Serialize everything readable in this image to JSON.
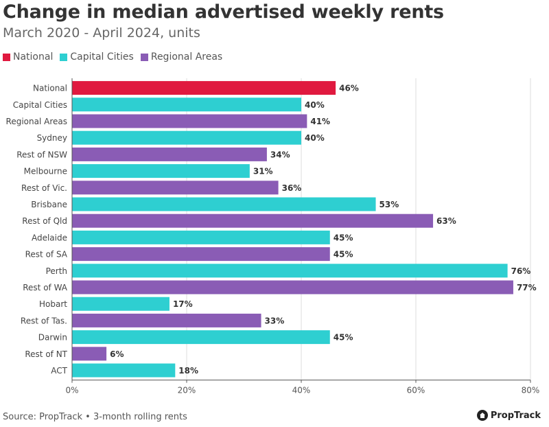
{
  "chart_data": {
    "type": "bar",
    "orientation": "horizontal",
    "title": "Change in median advertised weekly rents",
    "subtitle": "March 2020 - April 2024, units",
    "legend": [
      {
        "name": "National",
        "color": "#e0193f"
      },
      {
        "name": "Capital Cities",
        "color": "#2ecfd1"
      },
      {
        "name": "Regional Areas",
        "color": "#8a5cb5"
      }
    ],
    "categories": [
      "National",
      "Capital Cities",
      "Regional Areas",
      "Sydney",
      "Rest of NSW",
      "Melbourne",
      "Rest of Vic.",
      "Brisbane",
      "Rest of Qld",
      "Adelaide",
      "Rest of SA",
      "Perth",
      "Rest of WA",
      "Hobart",
      "Rest of Tas.",
      "Darwin",
      "Rest of NT",
      "ACT"
    ],
    "values": [
      46,
      40,
      41,
      40,
      34,
      31,
      36,
      53,
      63,
      45,
      45,
      76,
      77,
      17,
      33,
      45,
      6,
      18
    ],
    "groups": [
      "National",
      "Capital Cities",
      "Regional Areas",
      "Capital Cities",
      "Regional Areas",
      "Capital Cities",
      "Regional Areas",
      "Capital Cities",
      "Regional Areas",
      "Capital Cities",
      "Regional Areas",
      "Capital Cities",
      "Regional Areas",
      "Capital Cities",
      "Regional Areas",
      "Capital Cities",
      "Regional Areas",
      "Capital Cities"
    ],
    "value_labels": [
      "46%",
      "40%",
      "41%",
      "40%",
      "34%",
      "31%",
      "36%",
      "53%",
      "63%",
      "45%",
      "45%",
      "76%",
      "77%",
      "17%",
      "33%",
      "45%",
      "6%",
      "18%"
    ],
    "xlim": [
      0,
      80
    ],
    "xticks": [
      0,
      20,
      40,
      60,
      80
    ],
    "xtick_labels": [
      "0%",
      "20%",
      "40%",
      "60%",
      "80%"
    ],
    "grid": true
  },
  "footer": {
    "source": "Source: PropTrack • 3-month rolling rents",
    "brand": "PropTrack"
  }
}
